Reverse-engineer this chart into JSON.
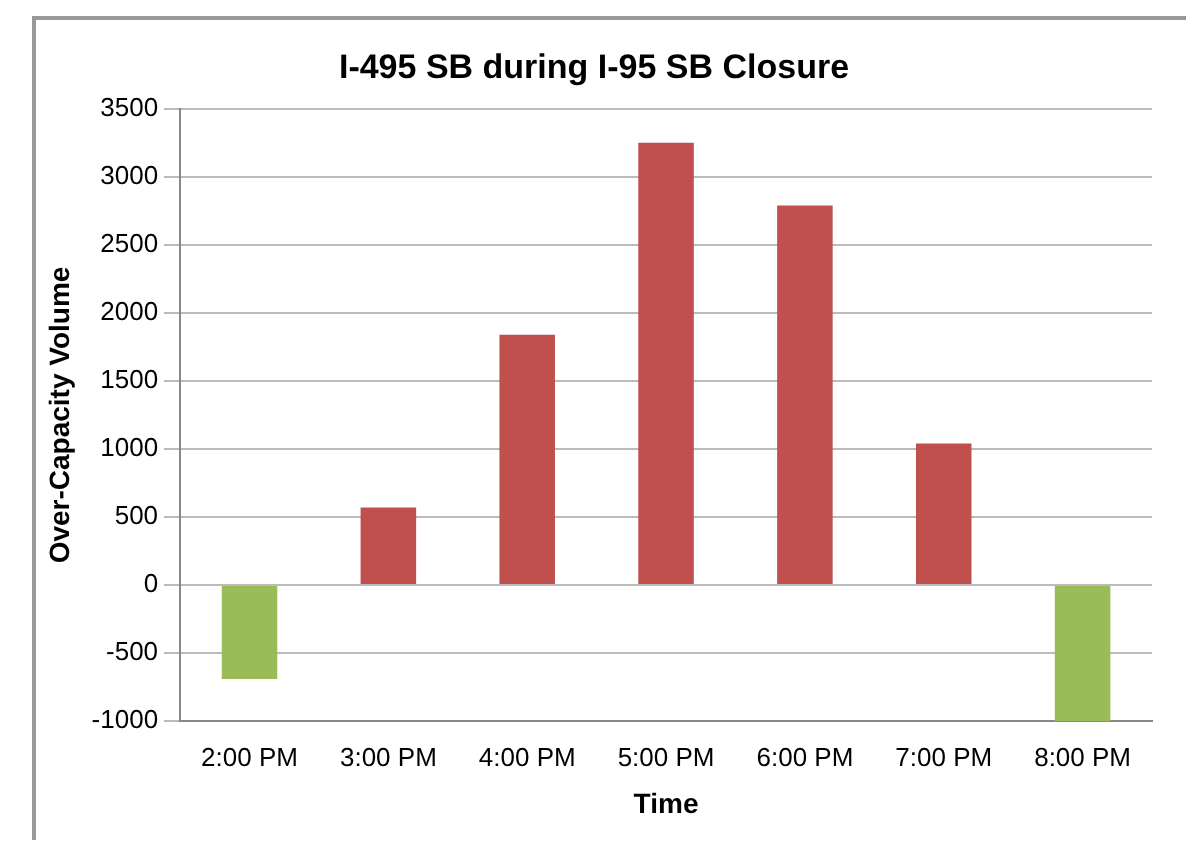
{
  "chart_data": {
    "type": "bar",
    "title": "I-495 SB during I-95 SB Closure",
    "xlabel": "Time",
    "ylabel": "Over-Capacity Volume",
    "categories": [
      "2:00 PM",
      "3:00 PM",
      "4:00 PM",
      "5:00 PM",
      "6:00 PM",
      "7:00 PM",
      "8:00 PM"
    ],
    "values": [
      -690,
      570,
      1840,
      3250,
      2790,
      1040,
      -1000
    ],
    "colors": [
      "#9bbb59",
      "#c0504d",
      "#c0504d",
      "#c0504d",
      "#c0504d",
      "#c0504d",
      "#9bbb59"
    ],
    "ylim": [
      -1000,
      3500
    ],
    "yticks": [
      -1000,
      -500,
      0,
      500,
      1000,
      1500,
      2000,
      2500,
      3000,
      3500
    ],
    "grid": "y",
    "legend": false
  }
}
